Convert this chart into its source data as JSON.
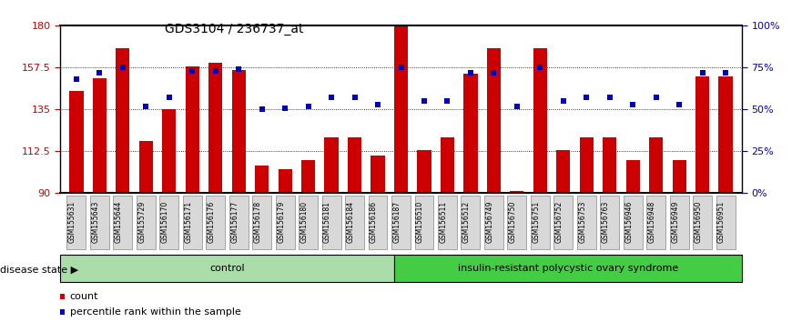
{
  "title": "GDS3104 / 236737_at",
  "samples": [
    "GSM155631",
    "GSM155643",
    "GSM155644",
    "GSM155729",
    "GSM156170",
    "GSM156171",
    "GSM156176",
    "GSM156177",
    "GSM156178",
    "GSM156179",
    "GSM156180",
    "GSM156181",
    "GSM156184",
    "GSM156186",
    "GSM156187",
    "GSM156510",
    "GSM156511",
    "GSM156512",
    "GSM156749",
    "GSM156750",
    "GSM156751",
    "GSM156752",
    "GSM156753",
    "GSM156763",
    "GSM156946",
    "GSM156948",
    "GSM156949",
    "GSM156950",
    "GSM156951"
  ],
  "bar_values": [
    145,
    152,
    168,
    118,
    135,
    158,
    160,
    156,
    105,
    103,
    108,
    120,
    120,
    110,
    180,
    113,
    120,
    154,
    168,
    91,
    168,
    113,
    120,
    120,
    108,
    120,
    108,
    153,
    153
  ],
  "percentile_values": [
    68,
    72,
    75,
    52,
    57,
    73,
    73,
    74,
    50,
    51,
    52,
    57,
    57,
    53,
    75,
    55,
    55,
    72,
    72,
    52,
    75,
    55,
    57,
    57,
    53,
    57,
    53,
    72,
    72
  ],
  "control_count": 14,
  "ylim_left": [
    90,
    180
  ],
  "ylim_right": [
    0,
    100
  ],
  "yticks_left": [
    90,
    112.5,
    135,
    157.5,
    180
  ],
  "yticks_right": [
    0,
    25,
    50,
    75,
    100
  ],
  "ytick_labels_left": [
    "90",
    "112.5",
    "135",
    "157.5",
    "180"
  ],
  "ytick_labels_right": [
    "0%",
    "25%",
    "50%",
    "75%",
    "100%"
  ],
  "bar_color": "#cc0000",
  "percentile_color": "#0000bb",
  "control_color": "#aaddaa",
  "disease_color": "#44cc44",
  "title_fontsize": 10,
  "control_label": "control",
  "disease_label": "insulin-resistant polycystic ovary syndrome",
  "disease_state_label": "disease state",
  "legend_count": "count",
  "legend_pct": "percentile rank within the sample"
}
